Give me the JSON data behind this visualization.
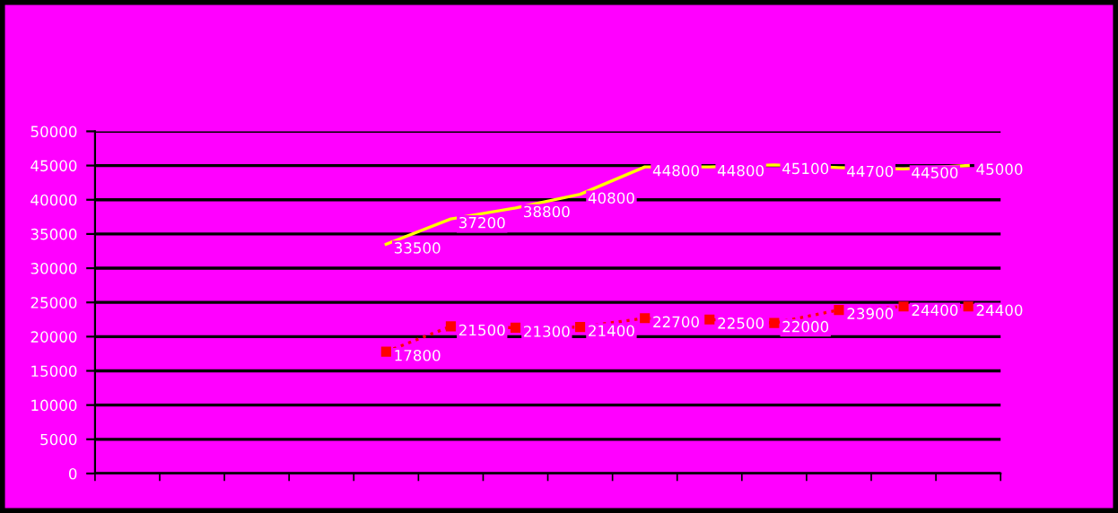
{
  "chart_data": {
    "type": "line",
    "categories": [
      null,
      null,
      null,
      null,
      null,
      null,
      null,
      null,
      null,
      null,
      null,
      null,
      null,
      null
    ],
    "series": [
      {
        "color": "#ffff00",
        "line_style": "solid",
        "marker": "none",
        "values": [
          null,
          null,
          null,
          null,
          33500,
          37200,
          38800,
          40800,
          44800,
          44800,
          45100,
          44700,
          44500,
          45000
        ]
      },
      {
        "color": "#ff0000",
        "line_style": "dotted",
        "marker": "square",
        "values": [
          null,
          null,
          null,
          null,
          17800,
          21500,
          21300,
          21400,
          22700,
          22500,
          22000,
          23900,
          24400,
          24400
        ]
      }
    ],
    "ylim": [
      0,
      50000
    ],
    "yticks": [
      0,
      5000,
      10000,
      15000,
      20000,
      25000,
      30000,
      35000,
      40000,
      45000,
      50000
    ],
    "grid": "y",
    "data_labels": true
  }
}
